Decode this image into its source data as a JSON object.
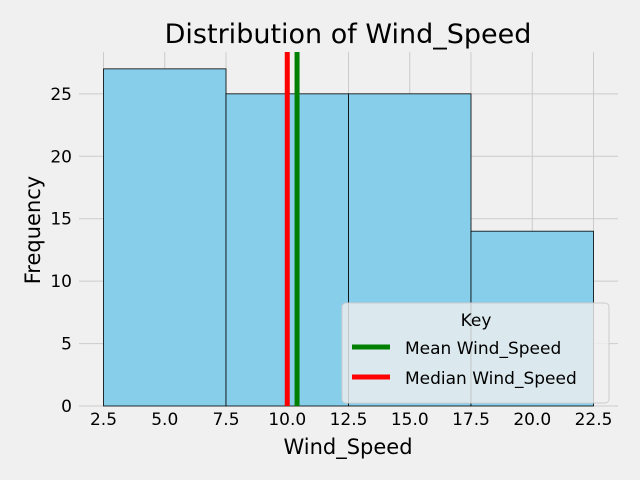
{
  "chart_data": {
    "type": "bar",
    "title": "Distribution of Wind_Speed",
    "xlabel": "Wind_Speed",
    "ylabel": "Frequency",
    "bins": [
      {
        "start": 2.5,
        "end": 7.5,
        "count": 27
      },
      {
        "start": 7.5,
        "end": 12.5,
        "count": 25
      },
      {
        "start": 12.5,
        "end": 17.5,
        "count": 25
      },
      {
        "start": 17.5,
        "end": 22.5,
        "count": 14
      }
    ],
    "xlim": [
      1.5,
      23.5
    ],
    "ylim": [
      0,
      28.35
    ],
    "xticks": [
      2.5,
      5.0,
      7.5,
      10.0,
      12.5,
      15.0,
      17.5,
      20.0,
      22.5
    ],
    "xtick_labels": [
      "2.5",
      "5.0",
      "7.5",
      "10.0",
      "12.5",
      "15.0",
      "17.5",
      "20.0",
      "22.5"
    ],
    "yticks": [
      0,
      5,
      10,
      15,
      20,
      25
    ],
    "ytick_labels": [
      "0",
      "5",
      "10",
      "15",
      "20",
      "25"
    ],
    "mean": 10.4,
    "median": 10.0,
    "grid": true,
    "legend": {
      "title": "Key",
      "placement": "lower-right",
      "entries": [
        {
          "label": "Mean Wind_Speed",
          "color": "#008000"
        },
        {
          "label": "Median Wind_Speed",
          "color": "#ff0000"
        }
      ]
    },
    "colors": {
      "bar": "#87ceeb",
      "bar_edge": "#000000",
      "mean": "#008000",
      "median": "#ff0000",
      "grid": "#cbcbcb",
      "background": "#f0f0f0"
    }
  }
}
